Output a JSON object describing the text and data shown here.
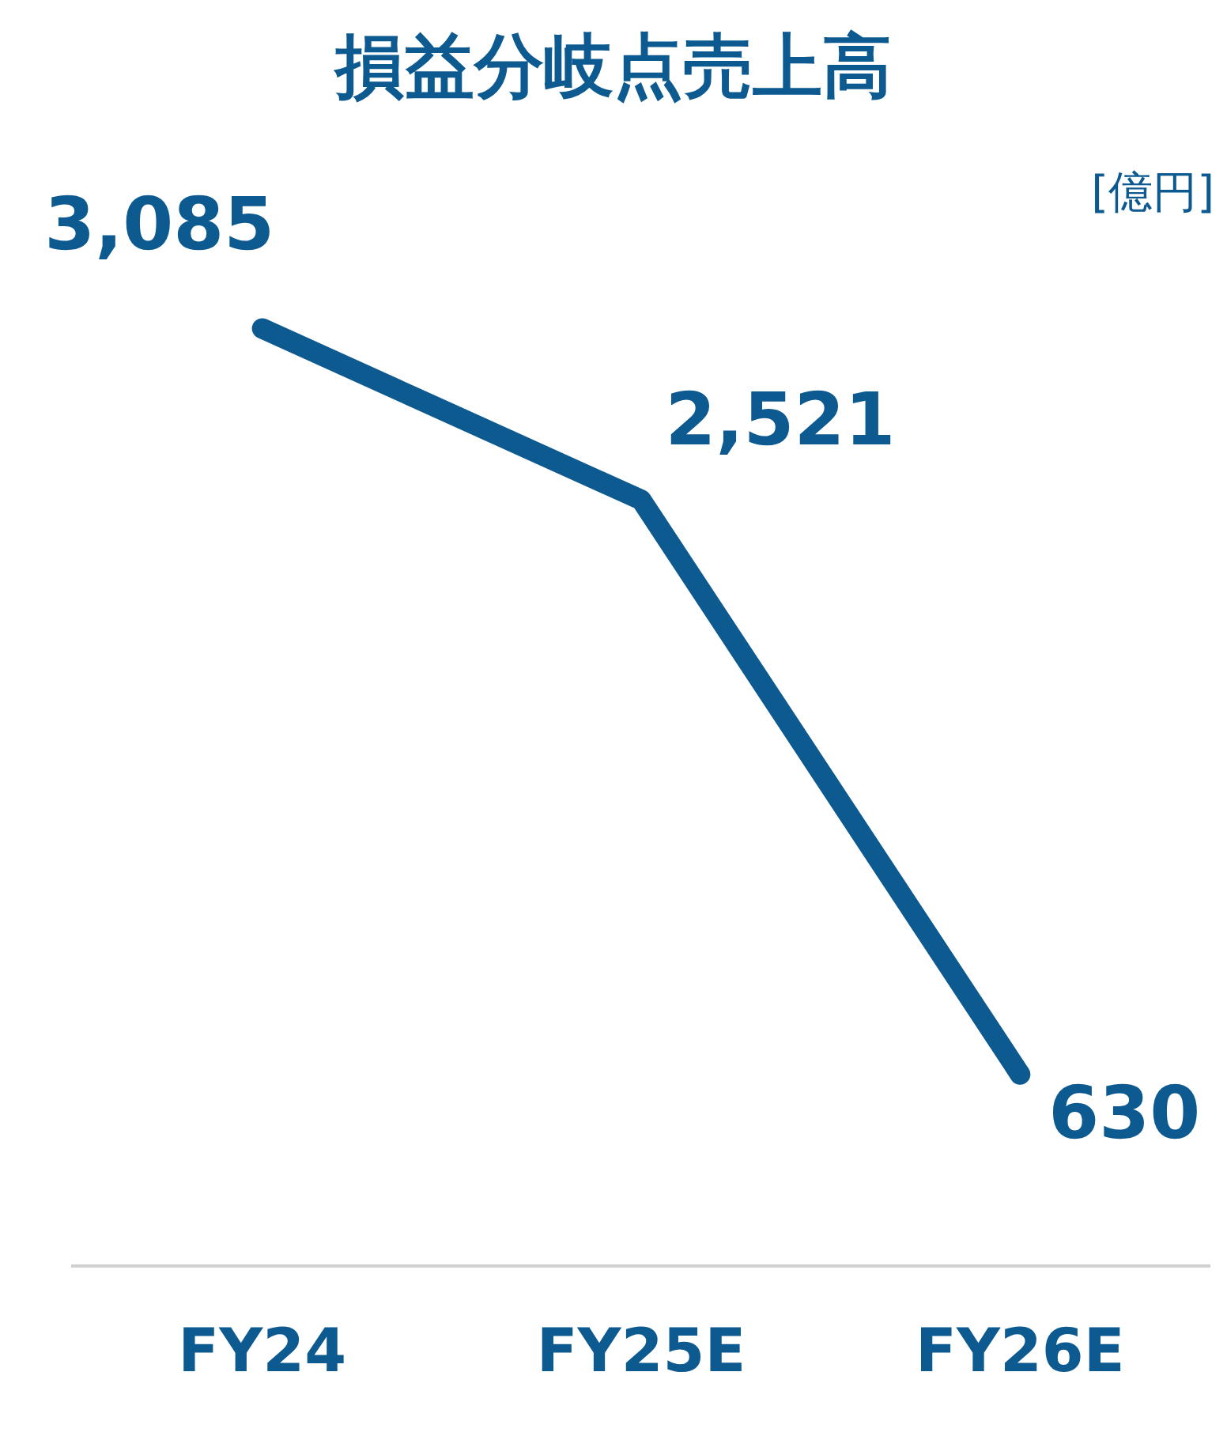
{
  "chart_data": {
    "type": "line",
    "title": "損益分岐点売上高",
    "categories": [
      "FY24",
      "FY25E",
      "FY26E"
    ],
    "series": [
      {
        "color": "#0d5a91",
        "values": [
          3085,
          2521,
          630
        ],
        "value_labels": [
          "3,085",
          "2,521",
          "630"
        ]
      }
    ],
    "marker": "none",
    "legend": false,
    "tick_labels": "x",
    "annotations": [
      "[億円]"
    ]
  }
}
